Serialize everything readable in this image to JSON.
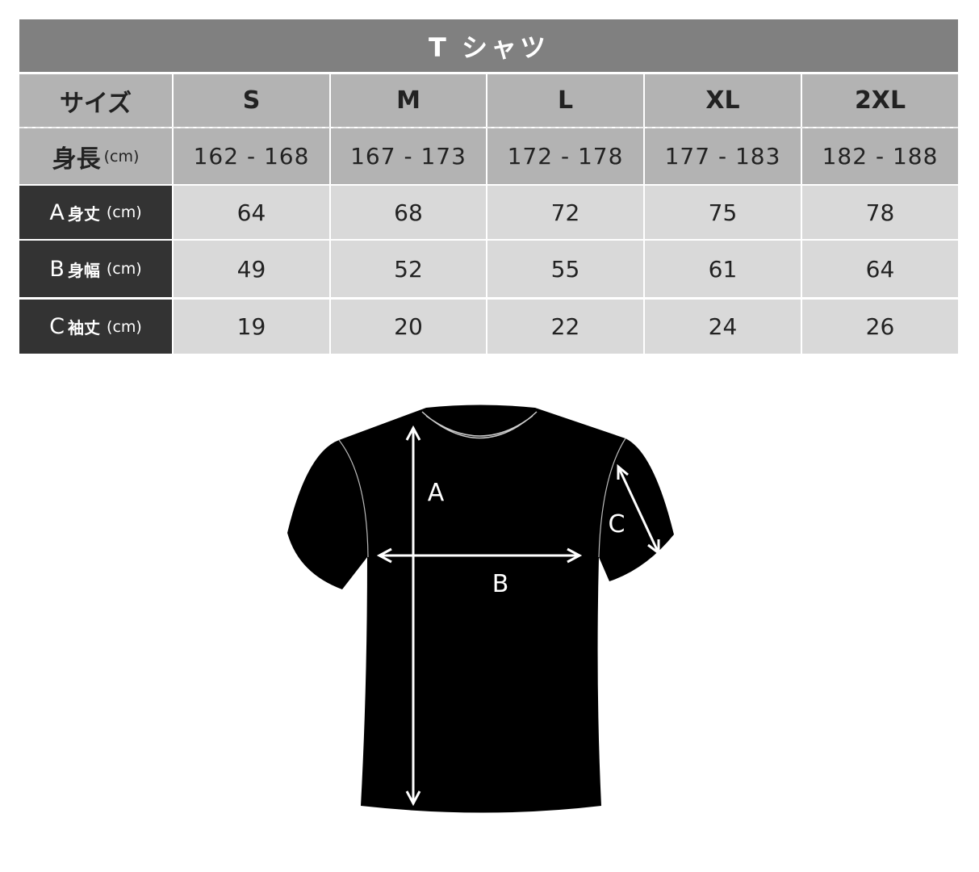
{
  "title": "T シャツ",
  "size_label": "サイズ",
  "height_label": "身長",
  "unit": "(cm)",
  "sizes": [
    "S",
    "M",
    "L",
    "XL",
    "2XL"
  ],
  "heights": [
    "162 - 168",
    "167 - 173",
    "172 - 178",
    "177 - 183",
    "182 - 188"
  ],
  "rows": [
    {
      "letter": "A",
      "name": "身丈",
      "values": [
        "64",
        "68",
        "72",
        "75",
        "78"
      ]
    },
    {
      "letter": "B",
      "name": "身幅",
      "values": [
        "49",
        "52",
        "55",
        "61",
        "64"
      ]
    },
    {
      "letter": "C",
      "name": "袖丈",
      "values": [
        "19",
        "20",
        "22",
        "24",
        "26"
      ]
    }
  ],
  "diagram": {
    "a": "A",
    "b": "B",
    "c": "C"
  }
}
